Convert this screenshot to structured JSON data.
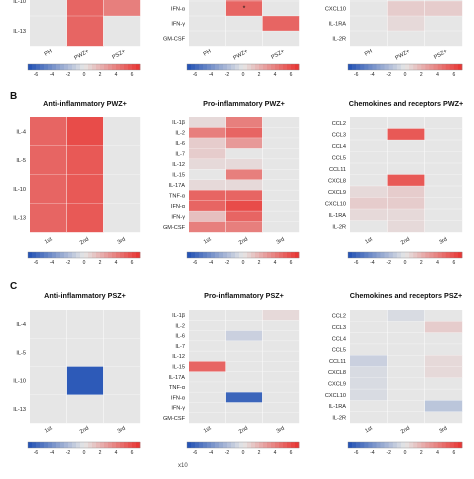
{
  "scale": {
    "min": -7,
    "max": 7,
    "ticks": [
      "-6",
      "-4",
      "-2",
      "0",
      "2",
      "4",
      "6"
    ],
    "colors": {
      "negative": "#1f4fb4",
      "zero": "#e6e6e6",
      "positive": "#e8322f"
    }
  },
  "section_labels": {
    "B": "B",
    "C": "C"
  },
  "footer_fragment": "x10",
  "chart_data": [
    {
      "id": "A-left",
      "type": "heatmap",
      "title": "",
      "rows": [
        "IL-10",
        "IL-13"
      ],
      "cols": [
        "PH",
        "PWZ+",
        "PSZ+"
      ],
      "values": [
        [
          0,
          5,
          4
        ],
        [
          0,
          5,
          0
        ]
      ]
    },
    {
      "id": "A-mid",
      "type": "heatmap",
      "title": "",
      "rows": [
        "TNF-α",
        "IFN-α",
        "IFN-γ",
        "GM-CSF"
      ],
      "cols": [
        "PH",
        "PWZ+",
        "PSZ+"
      ],
      "values": [
        [
          0,
          4,
          0
        ],
        [
          0,
          5,
          0
        ],
        [
          0,
          0,
          5
        ],
        [
          0,
          0,
          0
        ]
      ],
      "marker": {
        "row": 1,
        "col": 1,
        "text": "*"
      }
    },
    {
      "id": "A-right",
      "type": "heatmap",
      "title": "",
      "rows": [
        "CXCL9",
        "CXCL10",
        "IL-1RA",
        "IL-2R"
      ],
      "cols": [
        "PH",
        "PWZ+",
        "PSZ+"
      ],
      "values": [
        [
          0,
          0,
          0
        ],
        [
          0,
          1,
          1
        ],
        [
          0,
          0.5,
          0
        ],
        [
          0,
          0,
          0
        ]
      ]
    },
    {
      "id": "B-left",
      "type": "heatmap",
      "title": "Anti-inflammatory PWZ+",
      "rows": [
        "IL-4",
        "IL-5",
        "IL-10",
        "IL-13"
      ],
      "cols": [
        "1st",
        "2nd",
        "3rd"
      ],
      "values": [
        [
          5,
          6,
          0
        ],
        [
          5,
          5.5,
          0
        ],
        [
          5,
          5.5,
          0
        ],
        [
          5,
          5.5,
          0
        ]
      ]
    },
    {
      "id": "B-mid",
      "type": "heatmap",
      "title": "Pro-inflammatory PWZ+",
      "rows": [
        "IL-1β",
        "IL-2",
        "IL-6",
        "IL-7",
        "IL-12",
        "IL-15",
        "IL-17A",
        "TNF-α",
        "IFN-α",
        "IFN-γ",
        "GM-CSF"
      ],
      "cols": [
        "1st",
        "2nd",
        "3rd"
      ],
      "values": [
        [
          0.5,
          4,
          0
        ],
        [
          4,
          5,
          0
        ],
        [
          1,
          3,
          0
        ],
        [
          1,
          0,
          0
        ],
        [
          0.5,
          0.5,
          0
        ],
        [
          0,
          4,
          0
        ],
        [
          0.5,
          0.5,
          0
        ],
        [
          5,
          5,
          0
        ],
        [
          5,
          6,
          0
        ],
        [
          1.5,
          5,
          0
        ],
        [
          4,
          4,
          0
        ]
      ]
    },
    {
      "id": "B-right",
      "type": "heatmap",
      "title": "Chemokines and receptors PWZ+",
      "rows": [
        "CCL2",
        "CCL3",
        "CCL4",
        "CCL5",
        "CCL11",
        "CXCL8",
        "CXCL9",
        "CXCL10",
        "IL-1RA",
        "IL-2R"
      ],
      "cols": [
        "1st",
        "2nd",
        "3rd"
      ],
      "values": [
        [
          0,
          0,
          0
        ],
        [
          0,
          5.5,
          0
        ],
        [
          0,
          0,
          0
        ],
        [
          0,
          0,
          0
        ],
        [
          0,
          0,
          0
        ],
        [
          0,
          5.5,
          0
        ],
        [
          0.5,
          1,
          0
        ],
        [
          1,
          1,
          0
        ],
        [
          0.5,
          0.5,
          0
        ],
        [
          0,
          0.5,
          0
        ]
      ]
    },
    {
      "id": "C-left",
      "type": "heatmap",
      "title": "Anti-inflammatory PSZ+",
      "rows": [
        "IL-4",
        "IL-5",
        "IL-10",
        "IL-13"
      ],
      "cols": [
        "1st",
        "2nd",
        "3rd"
      ],
      "values": [
        [
          0,
          0,
          0
        ],
        [
          0,
          0,
          0
        ],
        [
          0,
          -6.5,
          0
        ],
        [
          0,
          0,
          0
        ]
      ]
    },
    {
      "id": "C-mid",
      "type": "heatmap",
      "title": "Pro-inflammatory PSZ+",
      "rows": [
        "IL-1β",
        "IL-2",
        "IL-6",
        "IL-7",
        "IL-12",
        "IL-15",
        "IL-17A",
        "TNF-α",
        "IFN-α",
        "IFN-γ",
        "GM-CSF"
      ],
      "cols": [
        "1st",
        "2nd",
        "3rd"
      ],
      "values": [
        [
          0,
          0,
          0.5
        ],
        [
          0,
          0,
          0
        ],
        [
          0,
          -1,
          0
        ],
        [
          0,
          0,
          0
        ],
        [
          0,
          0,
          0
        ],
        [
          5,
          0,
          0
        ],
        [
          0,
          0,
          0
        ],
        [
          0,
          0,
          0
        ],
        [
          0,
          -6,
          0
        ],
        [
          0,
          0,
          0
        ],
        [
          0,
          0,
          0
        ]
      ]
    },
    {
      "id": "C-right",
      "type": "heatmap",
      "title": "Chemokines and receptors PSZ+",
      "rows": [
        "CCL2",
        "CCL3",
        "CCL4",
        "CCL5",
        "CCL11",
        "CXCL8",
        "CXCL9",
        "CXCL10",
        "IL-1RA",
        "IL-2R"
      ],
      "cols": [
        "1st",
        "2nd",
        "3rd"
      ],
      "values": [
        [
          0,
          -0.5,
          0
        ],
        [
          0,
          0,
          1
        ],
        [
          0,
          0,
          0
        ],
        [
          0,
          0,
          0
        ],
        [
          -1,
          0,
          0.5
        ],
        [
          -0.5,
          0,
          0.5
        ],
        [
          -0.5,
          0,
          0
        ],
        [
          -0.5,
          0,
          0
        ],
        [
          0,
          0,
          -1.5
        ],
        [
          0,
          0,
          0
        ]
      ]
    }
  ]
}
